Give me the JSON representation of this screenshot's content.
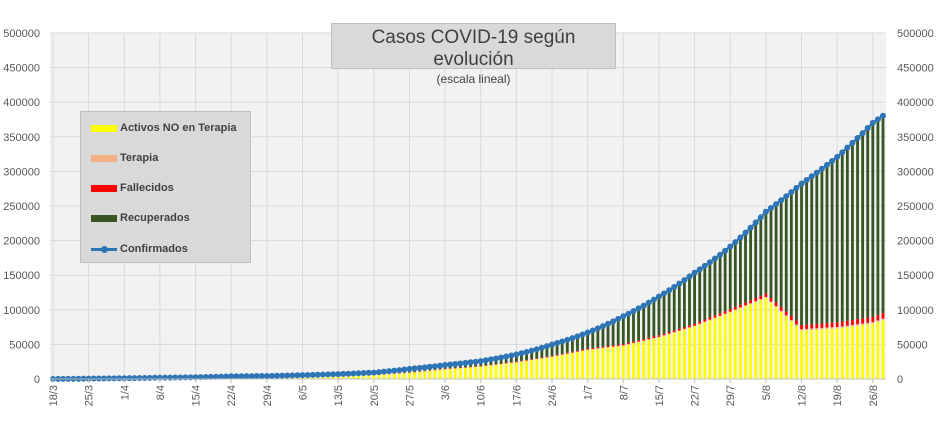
{
  "chart_data": {
    "type": "stacked-bar+line",
    "title": "Casos COVID-19 según evolución",
    "subtitle": "(escala lineal)",
    "y_ticks": [
      "0",
      "50000",
      "100000",
      "150000",
      "200000",
      "250000",
      "300000",
      "350000",
      "400000",
      "450000",
      "500000"
    ],
    "ylim": [
      0,
      500000
    ],
    "x_ticks": [
      "18/3",
      "25/3",
      "1/4",
      "8/4",
      "15/4",
      "22/4",
      "29/4",
      "6/5",
      "13/5",
      "20/5",
      "27/5",
      "3/6",
      "10/6",
      "17/6",
      "24/6",
      "1/7",
      "8/7",
      "15/7",
      "22/7",
      "29/7",
      "5/8",
      "12/8",
      "19/8",
      "26/8"
    ],
    "grid": true,
    "legend_position": "left",
    "series": [
      {
        "name": "Activos NO en Terapia",
        "color": "#ffff00"
      },
      {
        "name": "Terapia",
        "color": "#f4b183"
      },
      {
        "name": "Fallecidos",
        "color": "#ff0000"
      },
      {
        "name": "Recuperados",
        "color": "#375623"
      },
      {
        "name": "Confirmados",
        "color": "#2e75b6"
      }
    ],
    "confirmed_at_ticks": [
      90,
      600,
      1100,
      1900,
      2500,
      3900,
      4400,
      5600,
      7100,
      9300,
      14700,
      20200,
      25900,
      35500,
      49800,
      67200,
      90700,
      119300,
      153500,
      191300,
      241700,
      282400,
      320900,
      370200
    ],
    "confirmed_last": 380500,
    "active_at_ticks": [
      80,
      500,
      800,
      1200,
      1300,
      1600,
      1900,
      2300,
      3500,
      5500,
      9000,
      14000,
      18000,
      24000,
      32000,
      42000,
      48000,
      60000,
      76000,
      96000,
      117000,
      70000,
      73000,
      80000
    ],
    "active_last": 85000,
    "deaths_at_ticks": [
      0,
      20,
      40,
      100,
      150,
      200,
      250,
      300,
      330,
      380,
      450,
      550,
      650,
      800,
      1100,
      1400,
      1800,
      2300,
      2900,
      3600,
      4700,
      6000,
      6800,
      7800
    ],
    "deaths_last": 7900,
    "icu_at_ticks": [
      0,
      20,
      50,
      100,
      120,
      140,
      130,
      120,
      110,
      120,
      150,
      200,
      250,
      350,
      450,
      550,
      700,
      900,
      1100,
      1400,
      1700,
      2000,
      2100,
      2200
    ],
    "icu_last": 2300,
    "days_per_tick": 7,
    "extra_days": 2
  }
}
